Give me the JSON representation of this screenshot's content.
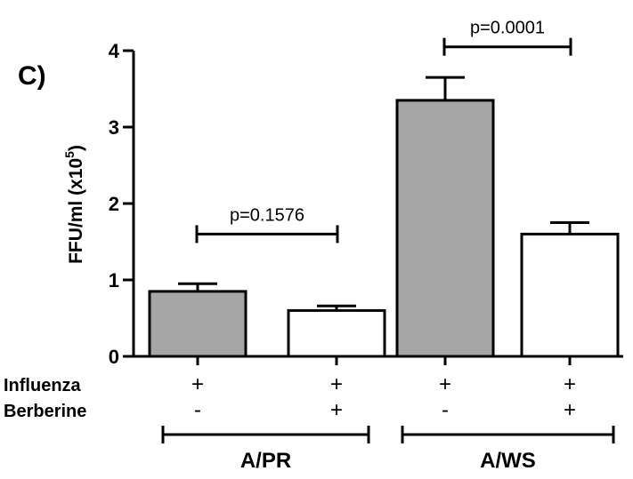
{
  "panel_label": "C)",
  "chart_data": {
    "type": "bar",
    "ylabel_main": "FFU/ml (x10",
    "ylabel_sup": "5",
    "ylabel_close": ")",
    "ylim": [
      0,
      4
    ],
    "yticks": [
      0,
      1,
      2,
      3,
      4
    ],
    "grid": false,
    "bars": [
      {
        "value": 0.85,
        "error": 0.1,
        "color": "#a6a6a6"
      },
      {
        "value": 0.6,
        "error": 0.06,
        "color": "#ffffff"
      },
      {
        "value": 3.35,
        "error": 0.3,
        "color": "#a6a6a6"
      },
      {
        "value": 1.6,
        "error": 0.15,
        "color": "#ffffff"
      }
    ],
    "comparisons": [
      {
        "from": 0,
        "to": 1,
        "y": 1.6,
        "label": "p=0.1576"
      },
      {
        "from": 2,
        "to": 3,
        "y": 4.05,
        "label": "p=0.0001"
      }
    ],
    "factors": [
      {
        "label": "Influenza",
        "values": [
          "+",
          "+",
          "+",
          "+"
        ]
      },
      {
        "label": "Berberine",
        "values": [
          "-",
          "+",
          "-",
          "+"
        ]
      }
    ],
    "groups": [
      {
        "label": "A/PR",
        "from": 0,
        "to": 1
      },
      {
        "label": "A/WS",
        "from": 2,
        "to": 3
      }
    ]
  }
}
